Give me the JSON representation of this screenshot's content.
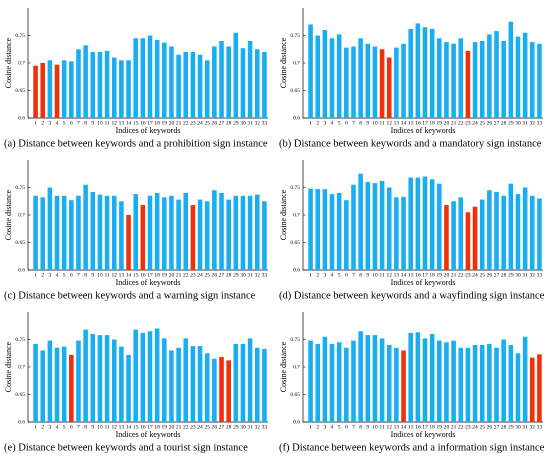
{
  "chart_data": [
    {
      "type": "bar",
      "title": "(a) Distance between keywords and a prohibition sign instance",
      "x_label": "Indices of keywords",
      "y_label": "Cosine distance",
      "categories": [
        1,
        2,
        3,
        4,
        5,
        6,
        7,
        8,
        9,
        10,
        11,
        12,
        13,
        14,
        15,
        16,
        17,
        18,
        19,
        20,
        21,
        22,
        23,
        24,
        25,
        26,
        27,
        28,
        29,
        30,
        31,
        32,
        33
      ],
      "values": [
        0.695,
        0.7,
        0.705,
        0.697,
        0.705,
        0.703,
        0.725,
        0.732,
        0.72,
        0.72,
        0.722,
        0.71,
        0.705,
        0.705,
        0.745,
        0.745,
        0.75,
        0.742,
        0.737,
        0.73,
        0.715,
        0.72,
        0.72,
        0.715,
        0.705,
        0.73,
        0.74,
        0.73,
        0.755,
        0.727,
        0.74,
        0.725,
        0.72
      ],
      "color": "#1aaef0",
      "highlight_color": "#f0300a",
      "highlight_indices": [
        0,
        1,
        3
      ],
      "ylim": [
        0.6,
        0.8
      ],
      "yticks": [
        0.6,
        0.65,
        0.7,
        0.75
      ]
    },
    {
      "type": "bar",
      "title": "(b) Distance between keywords and a mandatory sign instance",
      "x_label": "Indices of keywords",
      "y_label": "Cosine distance",
      "categories": [
        1,
        2,
        3,
        4,
        5,
        6,
        7,
        8,
        9,
        10,
        11,
        12,
        13,
        14,
        15,
        16,
        17,
        18,
        19,
        20,
        21,
        22,
        23,
        24,
        25,
        26,
        27,
        28,
        29,
        30,
        31,
        32,
        33
      ],
      "values": [
        0.77,
        0.75,
        0.76,
        0.745,
        0.752,
        0.728,
        0.73,
        0.745,
        0.735,
        0.73,
        0.725,
        0.71,
        0.728,
        0.735,
        0.762,
        0.772,
        0.765,
        0.762,
        0.745,
        0.738,
        0.735,
        0.745,
        0.722,
        0.738,
        0.74,
        0.752,
        0.758,
        0.74,
        0.775,
        0.748,
        0.755,
        0.738,
        0.735
      ],
      "color": "#1aaef0",
      "highlight_color": "#f0300a",
      "highlight_indices": [
        10,
        11,
        22
      ],
      "ylim": [
        0.6,
        0.8
      ],
      "yticks": [
        0.6,
        0.65,
        0.7,
        0.75
      ]
    },
    {
      "type": "bar",
      "title": "(c) Distance between keywords and a warning sign instance",
      "x_label": "Indices of keywords",
      "y_label": "Cosine distance",
      "categories": [
        1,
        2,
        3,
        4,
        5,
        6,
        7,
        8,
        9,
        10,
        11,
        12,
        13,
        14,
        15,
        16,
        17,
        18,
        19,
        20,
        21,
        22,
        23,
        24,
        25,
        26,
        27,
        28,
        29,
        30,
        31,
        32,
        33
      ],
      "values": [
        0.735,
        0.732,
        0.75,
        0.735,
        0.735,
        0.727,
        0.735,
        0.755,
        0.742,
        0.737,
        0.735,
        0.735,
        0.725,
        0.7,
        0.738,
        0.718,
        0.735,
        0.74,
        0.732,
        0.735,
        0.728,
        0.74,
        0.718,
        0.728,
        0.725,
        0.745,
        0.74,
        0.728,
        0.735,
        0.735,
        0.735,
        0.737,
        0.725
      ],
      "color": "#1aaef0",
      "highlight_color": "#f0300a",
      "highlight_indices": [
        13,
        15,
        22
      ],
      "ylim": [
        0.6,
        0.8
      ],
      "yticks": [
        0.6,
        0.65,
        0.7,
        0.75
      ]
    },
    {
      "type": "bar",
      "title": "(d) Distance between keywords and a wayfinding sign instance",
      "x_label": "Indices of keywords",
      "y_label": "Cosine distance",
      "categories": [
        1,
        2,
        3,
        4,
        5,
        6,
        7,
        8,
        9,
        10,
        11,
        12,
        13,
        14,
        15,
        16,
        17,
        18,
        19,
        20,
        21,
        22,
        23,
        24,
        25,
        26,
        27,
        28,
        29,
        30,
        31,
        32,
        33
      ],
      "values": [
        0.748,
        0.747,
        0.747,
        0.738,
        0.74,
        0.727,
        0.755,
        0.775,
        0.76,
        0.758,
        0.762,
        0.75,
        0.732,
        0.733,
        0.768,
        0.768,
        0.77,
        0.765,
        0.757,
        0.718,
        0.725,
        0.732,
        0.705,
        0.715,
        0.728,
        0.745,
        0.742,
        0.735,
        0.757,
        0.738,
        0.75,
        0.735,
        0.73
      ],
      "color": "#1aaef0",
      "highlight_color": "#f0300a",
      "highlight_indices": [
        19,
        22,
        23
      ],
      "ylim": [
        0.6,
        0.8
      ],
      "yticks": [
        0.6,
        0.65,
        0.7,
        0.75
      ]
    },
    {
      "type": "bar",
      "title": "(e) Distance between keywords and a tourist sign instance",
      "x_label": "Indices of keywords",
      "y_label": "Cosine distance",
      "categories": [
        1,
        2,
        3,
        4,
        5,
        6,
        7,
        8,
        9,
        10,
        11,
        12,
        13,
        14,
        15,
        16,
        17,
        18,
        19,
        20,
        21,
        22,
        23,
        24,
        25,
        26,
        27,
        28,
        29,
        30,
        31,
        32,
        33
      ],
      "values": [
        0.742,
        0.73,
        0.748,
        0.735,
        0.737,
        0.722,
        0.748,
        0.768,
        0.76,
        0.758,
        0.758,
        0.75,
        0.737,
        0.722,
        0.768,
        0.762,
        0.765,
        0.77,
        0.752,
        0.73,
        0.735,
        0.752,
        0.738,
        0.738,
        0.725,
        0.715,
        0.718,
        0.712,
        0.742,
        0.742,
        0.752,
        0.735,
        0.733
      ],
      "color": "#1aaef0",
      "highlight_color": "#f0300a",
      "highlight_indices": [
        5,
        26,
        27
      ],
      "ylim": [
        0.6,
        0.8
      ],
      "yticks": [
        0.6,
        0.65,
        0.7,
        0.75
      ]
    },
    {
      "type": "bar",
      "title": "(f) Distance between keywords and a information sign instance",
      "x_label": "Indices of keywords",
      "y_label": "Cosine distance",
      "categories": [
        1,
        2,
        3,
        4,
        5,
        6,
        7,
        8,
        9,
        10,
        11,
        12,
        13,
        14,
        15,
        16,
        17,
        18,
        19,
        20,
        21,
        22,
        23,
        24,
        25,
        26,
        27,
        28,
        29,
        30,
        31,
        32,
        33
      ],
      "values": [
        0.748,
        0.742,
        0.755,
        0.742,
        0.745,
        0.735,
        0.748,
        0.765,
        0.758,
        0.758,
        0.752,
        0.74,
        0.735,
        0.73,
        0.762,
        0.763,
        0.752,
        0.76,
        0.748,
        0.745,
        0.748,
        0.735,
        0.735,
        0.74,
        0.74,
        0.742,
        0.735,
        0.75,
        0.74,
        0.725,
        0.755,
        0.717,
        0.723
      ],
      "color": "#1aaef0",
      "highlight_color": "#f0300a",
      "highlight_indices": [
        13,
        31,
        32
      ],
      "ylim": [
        0.6,
        0.8
      ],
      "yticks": [
        0.6,
        0.65,
        0.7,
        0.75
      ]
    }
  ]
}
